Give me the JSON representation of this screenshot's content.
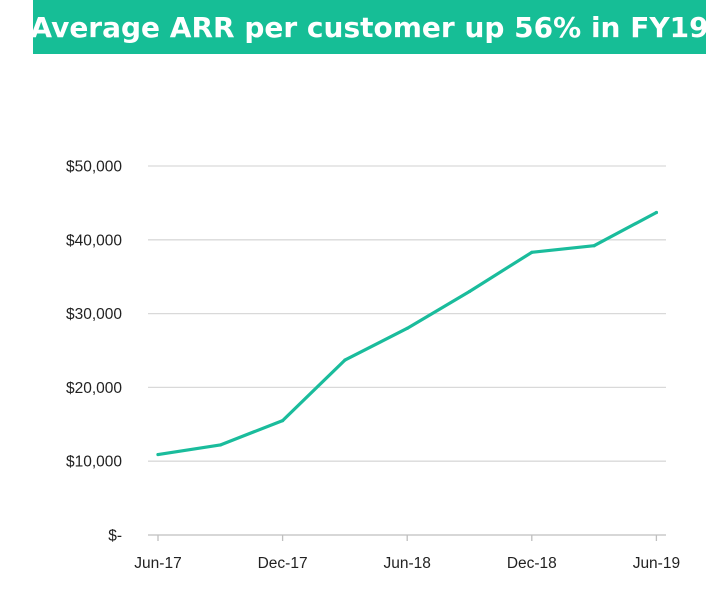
{
  "title": "Average ARR per customer up 56% in FY19",
  "colors": {
    "banner": "#16BE96",
    "line": "#1ABC9C",
    "grid": "#D9D9D9",
    "axis": "#BFBFBF",
    "text": "#222222"
  },
  "chart_data": {
    "type": "line",
    "title": "Average ARR per customer up 56% in FY19",
    "xlabel": "",
    "ylabel": "",
    "x": [
      "Jun-17",
      "Sep-17",
      "Dec-17",
      "Mar-18",
      "Jun-18",
      "Sep-18",
      "Dec-18",
      "Mar-19",
      "Jun-19"
    ],
    "x_tick_labels": [
      "Jun-17",
      "Dec-17",
      "Jun-18",
      "Dec-18",
      "Jun-19"
    ],
    "y_tick_labels": [
      "$-",
      "$10,000",
      "$20,000",
      "$30,000",
      "$40,000",
      "$50,000"
    ],
    "y_ticks": [
      0,
      10000,
      20000,
      30000,
      40000,
      50000
    ],
    "ylim": [
      0,
      50000
    ],
    "grid": true,
    "legend": "none",
    "series": [
      {
        "values": [
          10900,
          12200,
          15500,
          23700,
          28000,
          33000,
          38300,
          39200,
          43700
        ]
      }
    ]
  }
}
